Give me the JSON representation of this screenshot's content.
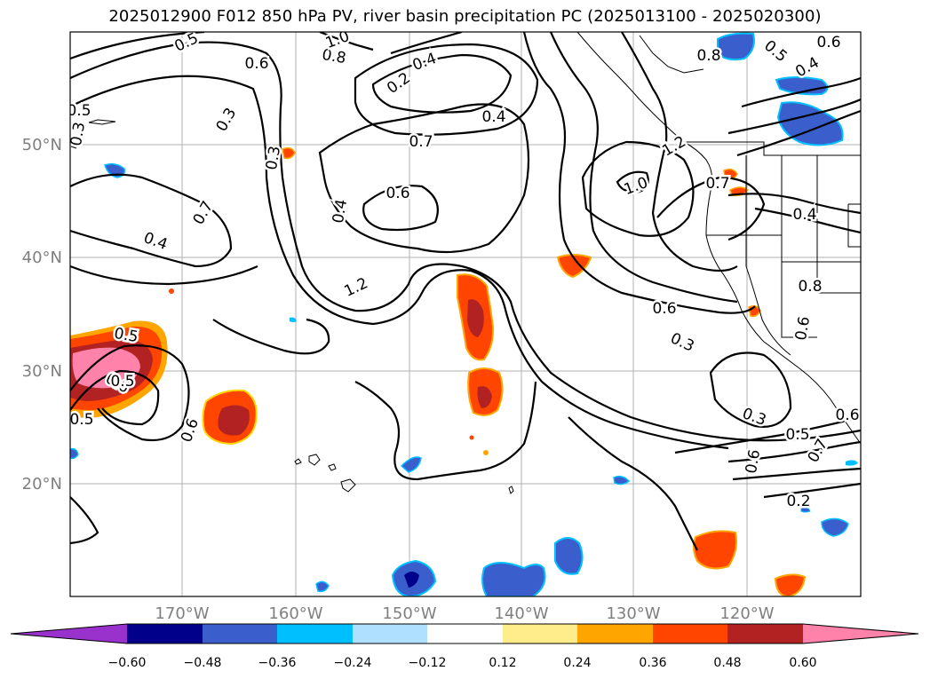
{
  "title": "2025012900 F012 850 hPa PV, river basin precipitation PC (2025013100 - 2025020300)",
  "map": {
    "lon_labels": [
      "170°W",
      "160°W",
      "150°W",
      "140°W",
      "130°W",
      "120°W"
    ],
    "lat_labels": [
      "50°N",
      "40°N",
      "30°N",
      "20°N"
    ],
    "contour_labels": [
      "0.5",
      "0.6",
      "0.8",
      "1.0",
      "0.3",
      "0.2",
      "0.4",
      "0.5",
      "0.4",
      "0.7",
      "0.6",
      "0.4",
      "0.3",
      "0.4",
      "0.7",
      "1.2",
      "1.0",
      "1.2",
      "0.7",
      "0.4",
      "0.8",
      "0.6",
      "0.3",
      "0.6",
      "0.5",
      "0.6",
      "0.5",
      "0.6",
      "0.3",
      "0.5",
      "0.6",
      "0.7",
      "0.6",
      "0.2",
      "0.3",
      "0.4",
      "0.5",
      "0.8",
      "0.6",
      "0.5"
    ]
  },
  "colorbar": {
    "ticks": [
      "−0.60",
      "−0.48",
      "−0.36",
      "−0.24",
      "−0.12",
      "0.12",
      "0.24",
      "0.36",
      "0.48",
      "0.60"
    ],
    "colors": [
      "#9932cc",
      "#00008b",
      "#3a5fcd",
      "#00bfff",
      "#afe0ff",
      "#ffffff",
      "#ffec8b",
      "#ffa500",
      "#ff4500",
      "#b22222",
      "#ff82ab"
    ]
  }
}
